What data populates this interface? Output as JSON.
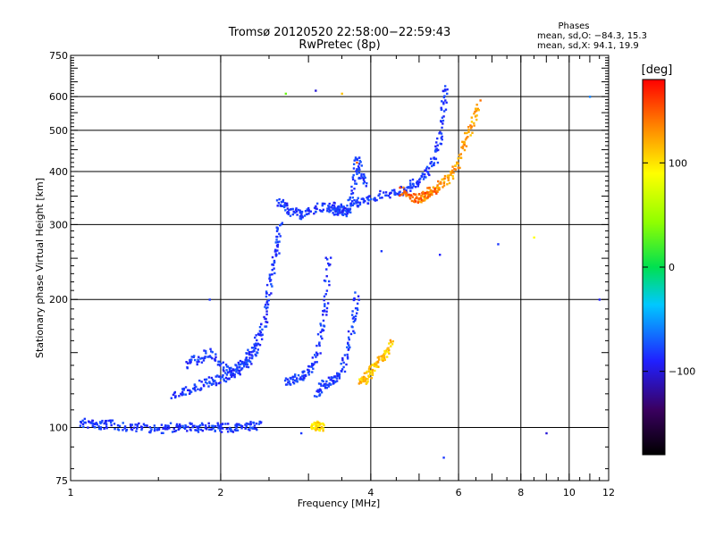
{
  "chart_data": {
    "type": "scatter",
    "title": "Tromsø 20120520 22:58:00−22:59:43",
    "subtitle": "RwPretec (8p)",
    "xlabel": "Frequency [MHz]",
    "ylabel": "Stationary phase Virtual Height [km]",
    "x_scale": "log",
    "y_scale": "log",
    "xlim": [
      1,
      12
    ],
    "ylim": [
      75,
      750
    ],
    "x_ticks": [
      1,
      2,
      4,
      6,
      8,
      10,
      12
    ],
    "x_tick_labels": [
      "1",
      "2",
      "4",
      "6",
      "8",
      "10",
      "12"
    ],
    "x_gridlines": [
      2,
      4,
      6,
      8,
      10
    ],
    "y_ticks": [
      75,
      100,
      200,
      300,
      400,
      500,
      600,
      750
    ],
    "y_tick_labels": [
      "75",
      "100",
      "200",
      "300",
      "400",
      "500",
      "600",
      "750"
    ],
    "y_gridlines": [
      100,
      200,
      300,
      400,
      500,
      600
    ],
    "grid": true,
    "stats": {
      "header": "Phases",
      "line1": "mean, sd,O: −84.3, 15.3",
      "line2": "mean, sd,X:  94.1, 19.9"
    },
    "colorbar": {
      "label": "[deg]",
      "range": [
        -180,
        180
      ],
      "ticks": [
        -100,
        0,
        100
      ],
      "tick_labels": [
        "−100",
        "0",
        "100"
      ]
    },
    "traces": [
      {
        "phase": -100,
        "points": [
          [
            1.05,
            103
          ],
          [
            1.1,
            102
          ],
          [
            1.15,
            101
          ],
          [
            1.2,
            102
          ],
          [
            1.3,
            100
          ],
          [
            1.4,
            100
          ],
          [
            1.5,
            99
          ],
          [
            1.6,
            100
          ],
          [
            1.7,
            100
          ],
          [
            1.8,
            100
          ],
          [
            1.9,
            100
          ],
          [
            2.0,
            100
          ],
          [
            2.1,
            100
          ],
          [
            2.2,
            100
          ],
          [
            2.3,
            101
          ],
          [
            2.4,
            101
          ]
        ]
      },
      {
        "phase": -100,
        "points": [
          [
            1.6,
            118
          ],
          [
            1.7,
            122
          ],
          [
            1.8,
            125
          ],
          [
            1.9,
            128
          ],
          [
            2.0,
            130
          ],
          [
            2.1,
            133
          ],
          [
            2.2,
            138
          ],
          [
            2.3,
            145
          ],
          [
            2.4,
            160
          ],
          [
            2.45,
            180
          ],
          [
            2.5,
            210
          ],
          [
            2.55,
            240
          ],
          [
            2.6,
            270
          ],
          [
            2.63,
            300
          ]
        ]
      },
      {
        "phase": -100,
        "points": [
          [
            1.7,
            140
          ],
          [
            1.8,
            145
          ],
          [
            1.9,
            150
          ],
          [
            2.0,
            140
          ],
          [
            2.1,
            135
          ],
          [
            2.2,
            140
          ],
          [
            2.3,
            150
          ],
          [
            2.4,
            165
          ]
        ]
      },
      {
        "phase": -100,
        "points": [
          [
            2.6,
            340
          ],
          [
            2.7,
            330
          ],
          [
            2.8,
            320
          ],
          [
            2.9,
            315
          ],
          [
            3.0,
            325
          ],
          [
            3.2,
            330
          ],
          [
            3.4,
            330
          ],
          [
            3.6,
            330
          ],
          [
            3.8,
            340
          ],
          [
            4.0,
            345
          ],
          [
            4.3,
            355
          ],
          [
            4.6,
            360
          ],
          [
            4.8,
            370
          ],
          [
            5.0,
            380
          ],
          [
            5.2,
            400
          ],
          [
            5.4,
            430
          ],
          [
            5.5,
            480
          ],
          [
            5.6,
            560
          ],
          [
            5.65,
            640
          ]
        ]
      },
      {
        "phase": -100,
        "points": [
          [
            2.7,
            128
          ],
          [
            2.8,
            130
          ],
          [
            2.9,
            132
          ],
          [
            3.0,
            135
          ],
          [
            3.1,
            145
          ],
          [
            3.2,
            170
          ],
          [
            3.25,
            200
          ],
          [
            3.3,
            260
          ]
        ]
      },
      {
        "phase": -100,
        "points": [
          [
            3.1,
            120
          ],
          [
            3.2,
            125
          ],
          [
            3.3,
            128
          ],
          [
            3.4,
            130
          ],
          [
            3.5,
            135
          ],
          [
            3.6,
            155
          ],
          [
            3.7,
            180
          ],
          [
            3.75,
            210
          ]
        ]
      },
      {
        "phase": -100,
        "points": [
          [
            3.3,
            330
          ],
          [
            3.4,
            320
          ],
          [
            3.5,
            325
          ],
          [
            3.6,
            320
          ],
          [
            3.7,
            360
          ],
          [
            3.75,
            430
          ],
          [
            3.8,
            400
          ],
          [
            3.9,
            370
          ]
        ]
      },
      {
        "phase": 120,
        "points": [
          [
            3.8,
            128
          ],
          [
            3.9,
            130
          ],
          [
            4.0,
            135
          ],
          [
            4.1,
            140
          ],
          [
            4.2,
            145
          ],
          [
            4.3,
            150
          ],
          [
            4.4,
            160
          ]
        ]
      },
      {
        "phase": 130,
        "points": [
          [
            5.0,
            345
          ],
          [
            5.2,
            355
          ],
          [
            5.4,
            360
          ],
          [
            5.6,
            380
          ],
          [
            5.8,
            390
          ],
          [
            6.0,
            420
          ],
          [
            6.2,
            470
          ],
          [
            6.4,
            520
          ],
          [
            6.6,
            580
          ]
        ]
      },
      {
        "phase": 150,
        "points": [
          [
            4.6,
            360
          ],
          [
            4.8,
            350
          ],
          [
            5.0,
            345
          ],
          [
            5.2,
            355
          ],
          [
            5.4,
            365
          ]
        ]
      },
      {
        "phase": 110,
        "points": [
          [
            3.05,
            100
          ],
          [
            3.1,
            101
          ],
          [
            3.15,
            102
          ],
          [
            3.2,
            99
          ]
        ]
      }
    ],
    "outliers": [
      {
        "x": 2.7,
        "y": 610,
        "phase": 30
      },
      {
        "x": 3.1,
        "y": 620,
        "phase": -120
      },
      {
        "x": 3.5,
        "y": 610,
        "phase": 120
      },
      {
        "x": 3.75,
        "y": 420,
        "phase": 150
      },
      {
        "x": 4.2,
        "y": 260,
        "phase": -100
      },
      {
        "x": 5.5,
        "y": 255,
        "phase": -110
      },
      {
        "x": 5.6,
        "y": 85,
        "phase": -100
      },
      {
        "x": 7.2,
        "y": 270,
        "phase": -100
      },
      {
        "x": 8.5,
        "y": 280,
        "phase": 100
      },
      {
        "x": 9.0,
        "y": 97,
        "phase": -120
      },
      {
        "x": 11.0,
        "y": 600,
        "phase": -70
      },
      {
        "x": 11.5,
        "y": 200,
        "phase": -110
      },
      {
        "x": 2.9,
        "y": 97,
        "phase": -100
      },
      {
        "x": 1.9,
        "y": 200,
        "phase": -100
      }
    ]
  }
}
